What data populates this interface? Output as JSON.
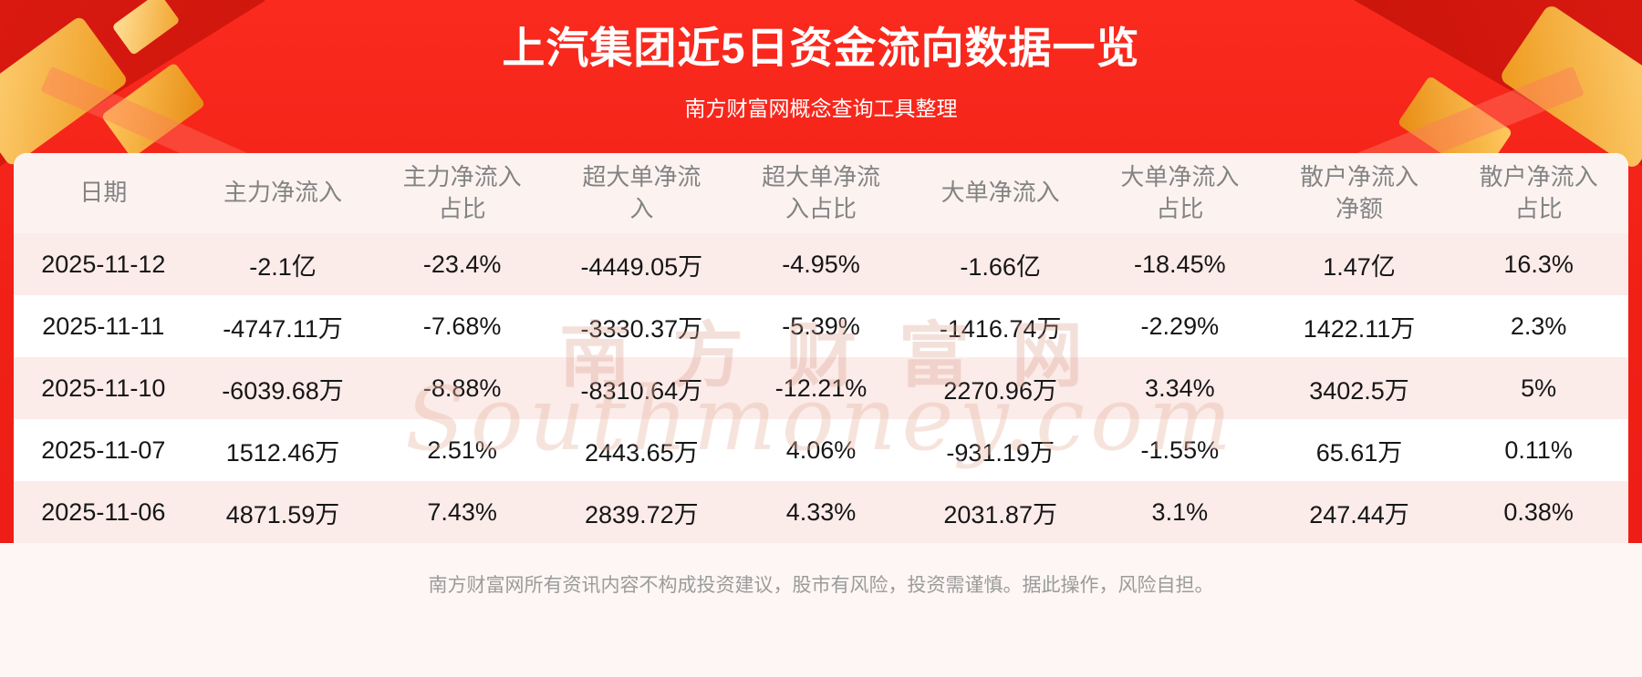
{
  "banner": {
    "title": "上汽集团近5日资金流向数据一览",
    "subtitle": "南方财富网概念查询工具整理"
  },
  "chart_data": {
    "type": "table",
    "title": "上汽集团近5日资金流向数据一览",
    "columns": [
      "日期",
      "主力净流入",
      "主力净流入占比",
      "超大单净流入",
      "超大单净流入占比",
      "大单净流入",
      "大单净流入占比",
      "散户净流入净额",
      "散户净流入占比"
    ],
    "rows": [
      [
        "2025-11-12",
        "-2.1亿",
        "-23.4%",
        "-4449.05万",
        "-4.95%",
        "-1.66亿",
        "-18.45%",
        "1.47亿",
        "16.3%"
      ],
      [
        "2025-11-11",
        "-4747.11万",
        "-7.68%",
        "-3330.37万",
        "-5.39%",
        "-1416.74万",
        "-2.29%",
        "1422.11万",
        "2.3%"
      ],
      [
        "2025-11-10",
        "-6039.68万",
        "-8.88%",
        "-8310.64万",
        "-12.21%",
        "2270.96万",
        "3.34%",
        "3402.5万",
        "5%"
      ],
      [
        "2025-11-07",
        "1512.46万",
        "2.51%",
        "2443.65万",
        "4.06%",
        "-931.19万",
        "-1.55%",
        "65.61万",
        "0.11%"
      ],
      [
        "2025-11-06",
        "4871.59万",
        "7.43%",
        "2839.72万",
        "4.33%",
        "2031.87万",
        "3.1%",
        "247.44万",
        "0.38%"
      ]
    ]
  },
  "watermark": {
    "cn": "南方财富网",
    "en": "Southmoney.com"
  },
  "footer": {
    "disclaimer": "南方财富网所有资讯内容不构成投资建议，股市有风险，投资需谨慎。据此操作，风险自担。"
  },
  "colors": {
    "banner_red": "#f02017",
    "row_pink": "#fbebe9",
    "header_bg": "#fcf3f1",
    "gold_accent": "#ee9a1e"
  }
}
